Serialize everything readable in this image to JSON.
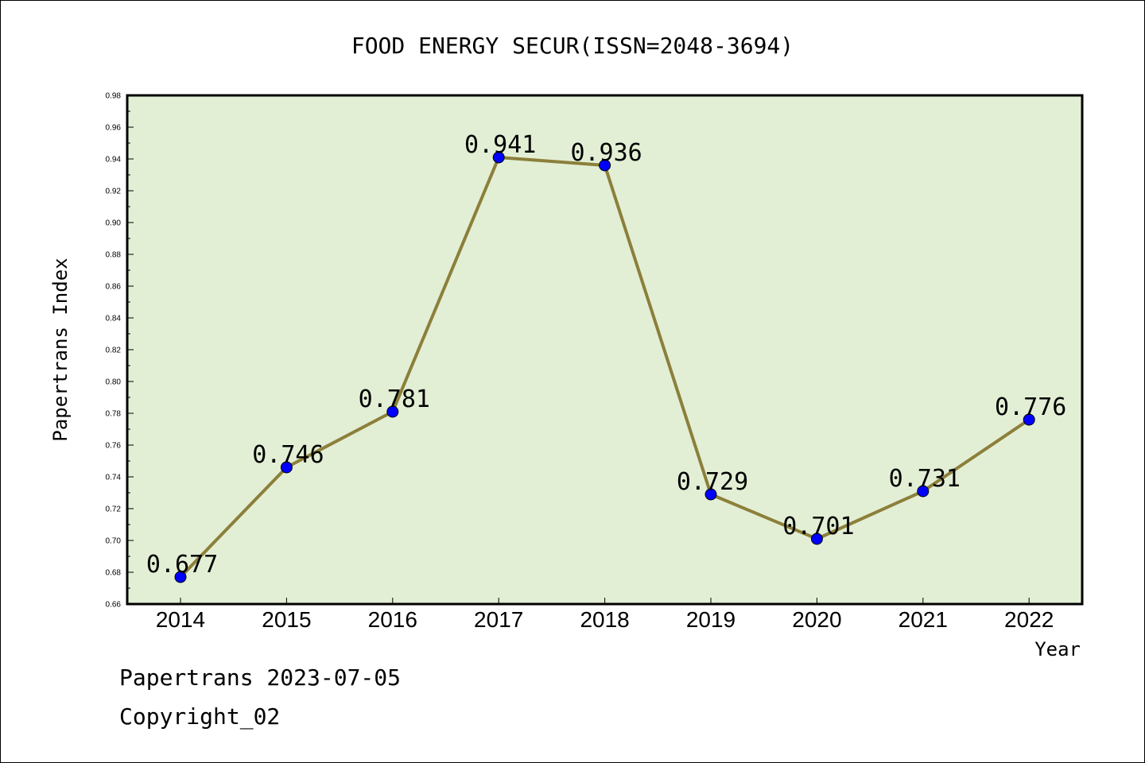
{
  "chart_data": {
    "type": "line",
    "title": "FOOD ENERGY SECUR(ISSN=2048-3694)",
    "xlabel": "Year",
    "ylabel": "Papertrans Index",
    "categories": [
      "2014",
      "2015",
      "2016",
      "2017",
      "2018",
      "2019",
      "2020",
      "2021",
      "2022"
    ],
    "values": [
      0.677,
      0.746,
      0.781,
      0.941,
      0.936,
      0.729,
      0.701,
      0.731,
      0.776
    ],
    "data_labels": [
      "0.677",
      "0.746",
      "0.781",
      "0.941",
      "0.936",
      "0.729",
      "0.701",
      "0.731",
      "0.776"
    ],
    "ylim": [
      0.66,
      0.98
    ],
    "yticks": [
      "0.66",
      "0.68",
      "0.70",
      "0.72",
      "0.74",
      "0.76",
      "0.78",
      "0.80",
      "0.82",
      "0.84",
      "0.86",
      "0.88",
      "0.90",
      "0.92",
      "0.94",
      "0.96",
      "0.98"
    ],
    "grid": false,
    "legend": "none",
    "colors": {
      "plot_background": "#e2efd5",
      "line": "#8c7f3a",
      "marker": "#0000ff",
      "axis": "#000000"
    }
  },
  "footer": {
    "date_text": "Papertrans 2023-07-05",
    "copyright_text": "Copyright_02"
  }
}
